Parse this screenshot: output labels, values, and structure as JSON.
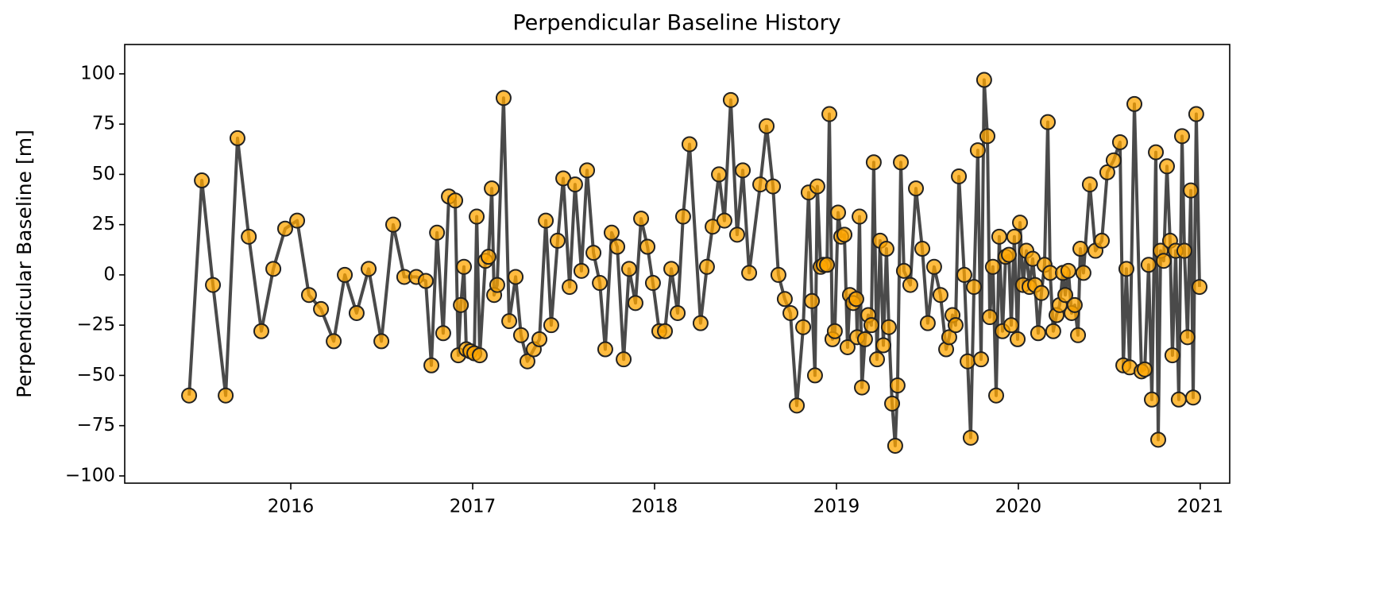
{
  "chart_data": {
    "type": "line",
    "title": "Perpendicular Baseline History",
    "y_label": "Perpendicular Baseline [m]",
    "color": "#404040",
    "marker_color": "#ffa500",
    "xlim": [
      2015.087,
      2021.162
    ],
    "xticks": [
      2016,
      2017,
      2018,
      2019,
      2020,
      2021
    ],
    "ylim": [
      -103.6,
      114.6
    ],
    "yticks": [
      {
        "value": -100,
        "label": "−100"
      },
      {
        "value": -75,
        "label": "−75"
      },
      {
        "value": -50,
        "label": "−50"
      },
      {
        "value": -25,
        "label": "−25"
      },
      0,
      25,
      50,
      75,
      100
    ],
    "x": [
      2015.441,
      2015.511,
      2015.572,
      2015.642,
      2015.707,
      2015.769,
      2015.838,
      2015.904,
      2015.969,
      2016.035,
      2016.1,
      2016.166,
      2016.236,
      2016.297,
      2016.362,
      2016.428,
      2016.498,
      2016.563,
      2016.624,
      2016.69,
      2016.742,
      2016.773,
      2016.804,
      2016.838,
      2016.869,
      2016.904,
      2016.921,
      2016.935,
      2016.952,
      2016.965,
      2016.987,
      2017.009,
      2017.022,
      2017.039,
      2017.07,
      2017.087,
      2017.105,
      2017.118,
      2017.135,
      2017.17,
      2017.201,
      2017.236,
      2017.266,
      2017.301,
      2017.336,
      2017.367,
      2017.402,
      2017.432,
      2017.467,
      2017.498,
      2017.533,
      2017.563,
      2017.598,
      2017.629,
      2017.664,
      2017.699,
      2017.729,
      2017.764,
      2017.795,
      2017.83,
      2017.86,
      2017.895,
      2017.926,
      2017.961,
      2017.991,
      2018.026,
      2018.057,
      2018.092,
      2018.127,
      2018.157,
      2018.192,
      2018.253,
      2018.288,
      2018.319,
      2018.354,
      2018.384,
      2018.419,
      2018.454,
      2018.485,
      2018.52,
      2018.581,
      2018.616,
      2018.651,
      2018.681,
      2018.716,
      2018.747,
      2018.782,
      2018.817,
      2018.847,
      2018.865,
      2018.882,
      2018.895,
      2018.913,
      2018.93,
      2018.948,
      2018.961,
      2018.978,
      2018.991,
      2019.009,
      2019.026,
      2019.044,
      2019.061,
      2019.074,
      2019.092,
      2019.109,
      2019.114,
      2019.127,
      2019.14,
      2019.157,
      2019.175,
      2019.192,
      2019.205,
      2019.223,
      2019.24,
      2019.258,
      2019.275,
      2019.288,
      2019.306,
      2019.323,
      2019.336,
      2019.354,
      2019.371,
      2019.406,
      2019.437,
      2019.472,
      2019.502,
      2019.537,
      2019.572,
      2019.603,
      2019.62,
      2019.638,
      2019.655,
      2019.673,
      2019.703,
      2019.721,
      2019.738,
      2019.756,
      2019.777,
      2019.795,
      2019.812,
      2019.83,
      2019.843,
      2019.86,
      2019.878,
      2019.895,
      2019.913,
      2019.93,
      2019.948,
      2019.961,
      2019.978,
      2019.996,
      2020.009,
      2020.026,
      2020.044,
      2020.061,
      2020.079,
      2020.092,
      2020.109,
      2020.127,
      2020.144,
      2020.162,
      2020.175,
      2020.192,
      2020.21,
      2020.227,
      2020.245,
      2020.258,
      2020.275,
      2020.293,
      2020.31,
      2020.328,
      2020.341,
      2020.358,
      2020.393,
      2020.424,
      2020.459,
      2020.489,
      2020.524,
      2020.559,
      2020.577,
      2020.594,
      2020.612,
      2020.638,
      2020.677,
      2020.695,
      2020.716,
      2020.734,
      2020.756,
      2020.769,
      2020.782,
      2020.799,
      2020.817,
      2020.834,
      2020.847,
      2020.865,
      2020.882,
      2020.9,
      2020.913,
      2020.93,
      2020.948,
      2020.961,
      2020.978,
      2020.996
    ],
    "values": [
      -60,
      47,
      -5,
      -60,
      68,
      19,
      -28,
      3,
      23,
      27,
      -10,
      -17,
      -33,
      0,
      -19,
      3,
      -33,
      25,
      -1,
      -1,
      -3,
      -45,
      21,
      -29,
      39,
      37,
      -40,
      -15,
      4,
      -37,
      -38,
      -39,
      29,
      -40,
      7,
      9,
      43,
      -10,
      -5,
      88,
      -23,
      -1,
      -30,
      -43,
      -37,
      -32,
      27,
      -25,
      17,
      48,
      -6,
      45,
      2,
      52,
      11,
      -4,
      -37,
      21,
      14,
      -42,
      3,
      -14,
      28,
      14,
      -4,
      -28,
      -28,
      3,
      -19,
      29,
      65,
      -24,
      4,
      24,
      50,
      27,
      87,
      20,
      52,
      1,
      45,
      74,
      44,
      0,
      -12,
      -19,
      -65,
      -26,
      41,
      -13,
      -50,
      44,
      4,
      5,
      5,
      80,
      -32,
      -28,
      31,
      19,
      20,
      -36,
      -10,
      -14,
      -12,
      -31,
      29,
      -56,
      -32,
      -20,
      -25,
      56,
      -42,
      17,
      -35,
      13,
      -26,
      -64,
      -85,
      -55,
      56,
      2,
      -5,
      43,
      13,
      -24,
      4,
      -10,
      -37,
      -31,
      -20,
      -25,
      49,
      0,
      -43,
      -81,
      -6,
      62,
      -42,
      97,
      69,
      -21,
      4,
      -60,
      19,
      -28,
      9,
      10,
      -25,
      19,
      -32,
      26,
      -5,
      12,
      -6,
      8,
      -5,
      -29,
      -9,
      5,
      76,
      1,
      -28,
      -20,
      -15,
      1,
      -10,
      2,
      -19,
      -15,
      -30,
      13,
      1,
      45,
      12,
      17,
      51,
      57,
      66,
      -45,
      3,
      -46,
      85,
      -48,
      -47,
      5,
      -62,
      61,
      -82,
      12,
      7,
      54,
      17,
      -40,
      12,
      -62,
      69,
      12,
      -31,
      42,
      -61,
      80,
      -6
    ]
  }
}
